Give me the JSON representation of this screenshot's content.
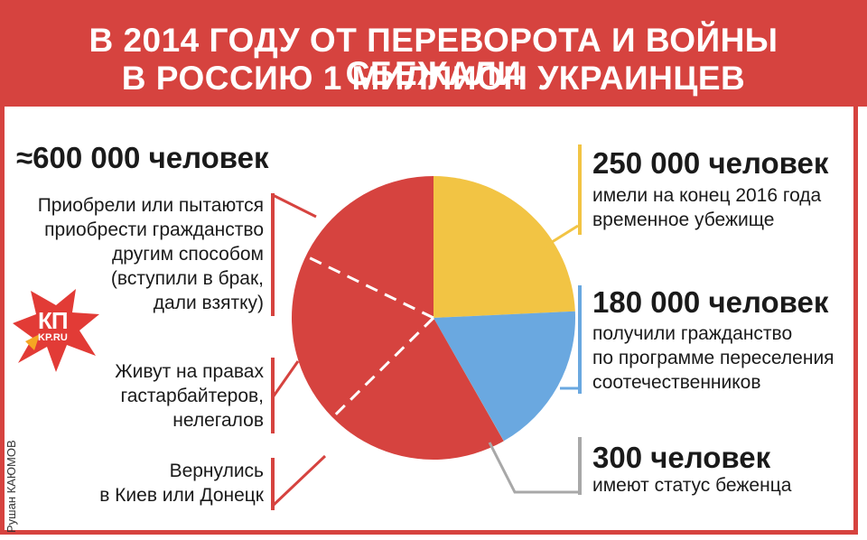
{
  "title": {
    "line1": "В 2014 ГОДУ ОТ ПЕРЕВОРОТА И ВОЙНЫ СБЕЖАЛИ",
    "line2": "В РОССИЮ 1 МИЛЛИОН УКРАИНЦЕВ"
  },
  "left": {
    "total": "≈600 000 человек",
    "items": [
      {
        "lines": [
          "Приобрели или пытаются",
          "приобрести гражданство",
          "другим способом",
          "(вступили в брак,",
          "дали взятку)"
        ]
      },
      {
        "lines": [
          "Живут на правах",
          "гастарбайтеров,",
          "нелегалов"
        ]
      },
      {
        "lines": [
          "Вернулись",
          "в Киев или Донецк"
        ]
      }
    ]
  },
  "right": [
    {
      "value": "250 000 человек",
      "lines": [
        "имели на конец 2016 года",
        "временное убежище"
      ],
      "color": "#f2c444"
    },
    {
      "value": "180 000 человек",
      "lines": [
        "получили гражданство",
        "по программе переселения",
        "соотечественников"
      ],
      "color": "#6aa8e0"
    },
    {
      "value": "300 человек",
      "lines": [
        "имеют статус беженца"
      ],
      "color": "#a8a8a8"
    }
  ],
  "credit": "Рушан КАЮМОВ",
  "logo": {
    "text_top": "КП",
    "text_bottom": "KP.RU"
  },
  "colors": {
    "accent": "#d6433f",
    "yellow": "#f2c444",
    "blue": "#6aa8e0",
    "gray": "#a8a8a8"
  },
  "chart_data": {
    "type": "pie",
    "title": "В 2014 ГОДУ ОТ ПЕРЕВОРОТА И ВОЙНЫ СБЕЖАЛИ В РОССИЮ 1 МИЛЛИОН УКРАИНЦЕВ",
    "slices": [
      {
        "label": "250 000 человек",
        "value": 250000,
        "color": "#f2c444"
      },
      {
        "label": "180 000 человек",
        "value": 180000,
        "color": "#6aa8e0"
      },
      {
        "label": "300 человек",
        "value": 300,
        "color": "#a8a8a8"
      },
      {
        "label": "≈600 000 человек",
        "value": 600000,
        "color": "#d6433f"
      }
    ]
  }
}
